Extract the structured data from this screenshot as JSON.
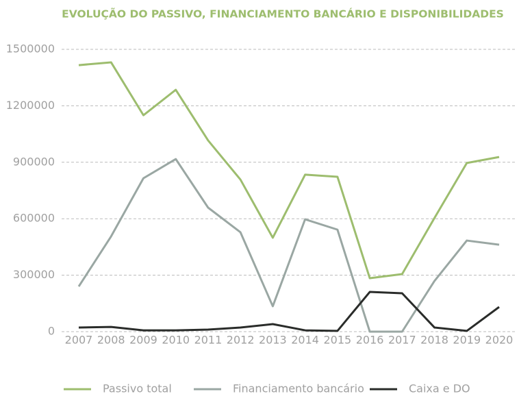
{
  "chart_data": {
    "type": "line",
    "title": "EVOLUÇÃO DO PASSIVO, FINANCIAMENTO BANCÁRIO E DISPONIBILIDADES",
    "categories": [
      "2007",
      "2008",
      "2009",
      "2010",
      "2011",
      "2012",
      "2013",
      "2014",
      "2015",
      "2016",
      "2017",
      "2018",
      "2019",
      "2020"
    ],
    "series": [
      {
        "name": "Passivo total",
        "color": "#9dbd6e",
        "values": [
          1416000,
          1431000,
          1150000,
          1285000,
          1016000,
          808000,
          499000,
          834000,
          823000,
          284000,
          306000,
          604000,
          896000,
          928000
        ]
      },
      {
        "name": "Financiamento bancário",
        "color": "#9aa7a3",
        "values": [
          240000,
          506000,
          815000,
          917000,
          659000,
          528000,
          135000,
          597000,
          542000,
          0,
          0,
          269000,
          484000,
          462000
        ]
      },
      {
        "name": "Caixa e DO",
        "color": "#2a2c2a",
        "values": [
          22000,
          25000,
          7000,
          7000,
          11000,
          22000,
          40000,
          7000,
          4000,
          211000,
          204000,
          22000,
          4000,
          131000
        ]
      }
    ],
    "ylim": [
      0,
      1500000
    ],
    "yticks": [
      0,
      300000,
      600000,
      900000,
      1200000,
      1500000
    ],
    "grid": true,
    "legend": "bottom"
  }
}
